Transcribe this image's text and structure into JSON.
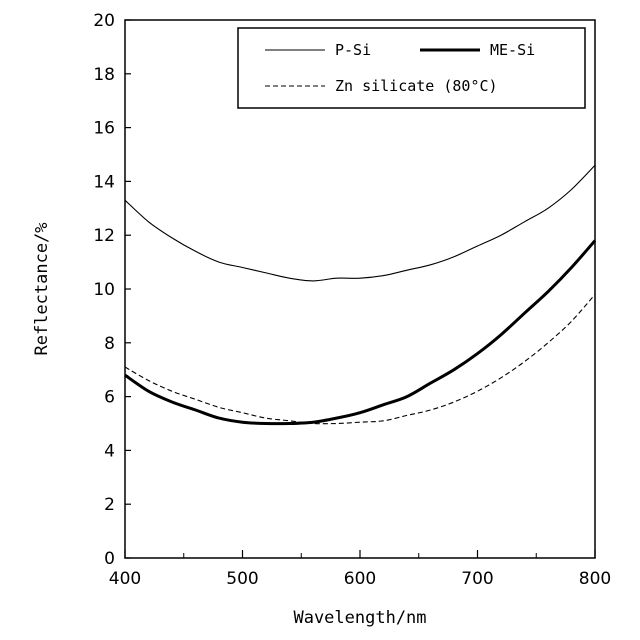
{
  "chart_data": {
    "type": "line",
    "title": "",
    "xlabel": "Wavelength/nm",
    "ylabel": "Reflectance/%",
    "xlim": [
      400,
      800
    ],
    "ylim": [
      0,
      20
    ],
    "x_ticks": [
      "400",
      "500",
      "600",
      "700",
      "800"
    ],
    "y_ticks": [
      "0",
      "2",
      "4",
      "6",
      "8",
      "10",
      "12",
      "14",
      "16",
      "18",
      "20"
    ],
    "grid": false,
    "legend_position": "top-right",
    "series": [
      {
        "name": "P-Si",
        "style": "thin-solid",
        "color": "#000000",
        "x": [
          400,
          420,
          440,
          460,
          480,
          500,
          520,
          540,
          560,
          580,
          600,
          620,
          640,
          660,
          680,
          700,
          720,
          740,
          760,
          780,
          800
        ],
        "y": [
          13.3,
          12.5,
          11.9,
          11.4,
          11.0,
          10.8,
          10.6,
          10.4,
          10.3,
          10.4,
          10.4,
          10.5,
          10.7,
          10.9,
          11.2,
          11.6,
          12.0,
          12.5,
          13.0,
          13.7,
          14.6
        ]
      },
      {
        "name": "ME-Si",
        "style": "thick-solid",
        "color": "#000000",
        "x": [
          400,
          420,
          440,
          460,
          480,
          500,
          520,
          540,
          560,
          580,
          600,
          620,
          640,
          660,
          680,
          700,
          720,
          740,
          760,
          780,
          800
        ],
        "y": [
          6.8,
          6.2,
          5.8,
          5.5,
          5.2,
          5.05,
          5.0,
          5.0,
          5.05,
          5.2,
          5.4,
          5.7,
          6.0,
          6.5,
          7.0,
          7.6,
          8.3,
          9.1,
          9.9,
          10.8,
          11.8
        ]
      },
      {
        "name": "Zn silicate (80°C)",
        "style": "dashed",
        "color": "#000000",
        "x": [
          400,
          420,
          440,
          460,
          480,
          500,
          520,
          540,
          560,
          580,
          600,
          620,
          640,
          660,
          680,
          700,
          720,
          740,
          760,
          780,
          800
        ],
        "y": [
          7.1,
          6.6,
          6.2,
          5.9,
          5.6,
          5.4,
          5.2,
          5.1,
          5.0,
          5.0,
          5.05,
          5.1,
          5.3,
          5.5,
          5.8,
          6.2,
          6.7,
          7.3,
          8.0,
          8.8,
          9.8
        ]
      }
    ]
  }
}
